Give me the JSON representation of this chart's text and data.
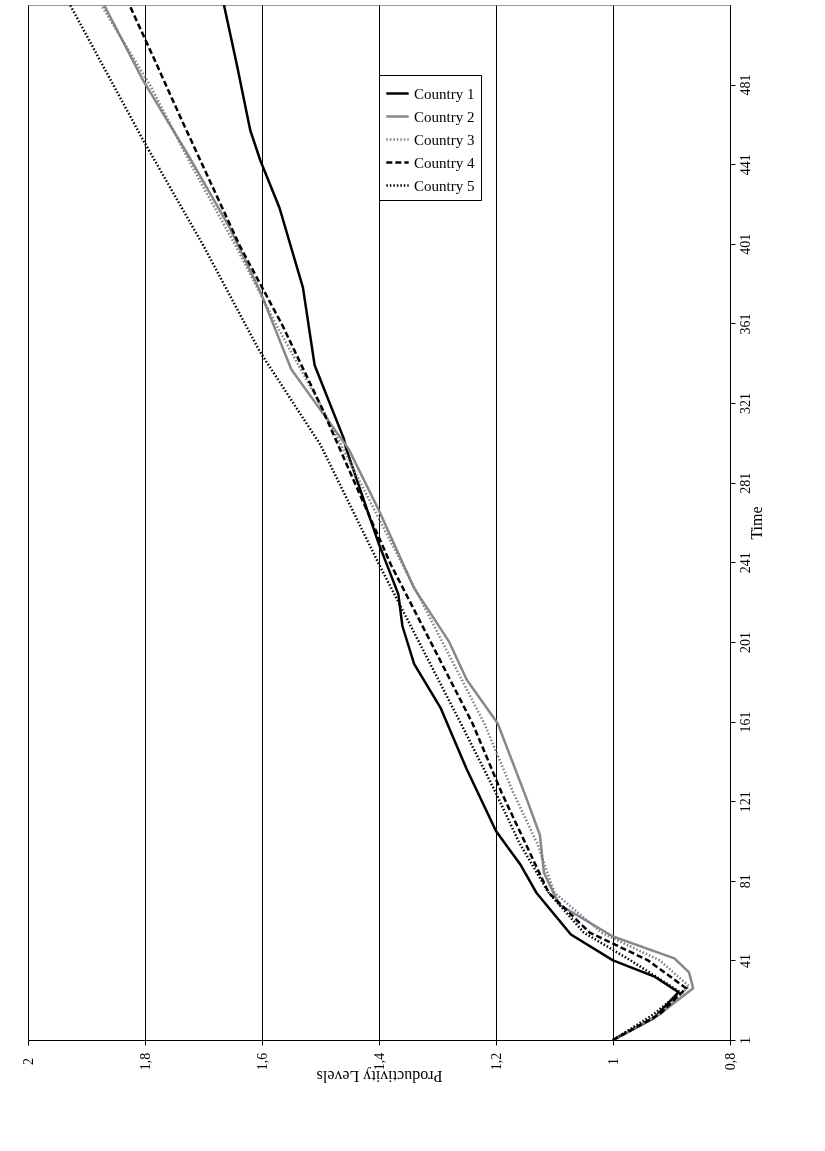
{
  "chart_data": {
    "type": "line",
    "xlabel": "Productivity Levels",
    "ylabel": "Time",
    "xlim": [
      2,
      0.8
    ],
    "xticks": [
      2,
      {
        "value": 1.8,
        "label": "1,8"
      },
      {
        "value": 1.6,
        "label": "1,6"
      },
      {
        "value": 1.4,
        "label": "1,4"
      },
      {
        "value": 1.2,
        "label": "1,2"
      },
      1,
      {
        "value": 0.8,
        "label": "0,8"
      }
    ],
    "ylim": [
      1,
      521
    ],
    "yticks": [
      1,
      41,
      81,
      121,
      161,
      201,
      241,
      281,
      321,
      361,
      401,
      441,
      481
    ],
    "grid": "x",
    "legend": "top right",
    "marker": "none",
    "series": [
      {
        "name": "Country 1",
        "color": "#000000",
        "line_style": "solid",
        "x": [
          1.0,
          0.93,
          0.888,
          0.93,
          1.0,
          1.072,
          1.131,
          1.158,
          1.2,
          1.25,
          1.295,
          1.34,
          1.36,
          1.367,
          1.4,
          1.456,
          1.46,
          1.51,
          1.53,
          1.57,
          1.603,
          1.62,
          1.643,
          1.665
        ],
        "values": [
          1,
          12,
          25,
          33,
          41,
          54,
          75,
          89,
          106,
          137,
          168,
          190,
          209,
          225,
          250,
          298,
          303,
          340,
          379,
          419,
          443,
          458,
          491,
          521
        ]
      },
      {
        "name": "Country 2",
        "color": "#888888",
        "line_style": "solid",
        "x": [
          1.0,
          0.92,
          0.863,
          0.87,
          0.895,
          1.0,
          1.092,
          1.118,
          1.125,
          1.15,
          1.197,
          1.25,
          1.28,
          1.34,
          1.4,
          1.452,
          1.55,
          1.603,
          1.655,
          1.723,
          1.803,
          1.87
        ],
        "values": [
          1,
          14,
          27,
          35,
          42,
          53,
          69,
          85,
          104,
          124,
          160,
          182,
          201,
          228,
          267,
          298,
          338,
          377,
          409,
          444,
          483,
          521
        ]
      },
      {
        "name": "Country 3",
        "color": "#7a7a9a",
        "line_style": "dotted",
        "x": [
          1.0,
          0.92,
          0.87,
          0.92,
          1.02,
          1.1,
          1.13,
          1.17,
          1.22,
          1.29,
          1.36,
          1.43,
          1.5,
          1.575,
          1.645,
          1.72,
          1.79,
          1.875
        ],
        "values": [
          1,
          14,
          28,
          41,
          55,
          75,
          100,
          125,
          160,
          200,
          240,
          280,
          320,
          360,
          400,
          440,
          480,
          521
        ]
      },
      {
        "name": "Country 4",
        "color": "#000000",
        "line_style": "dashed",
        "x": [
          1.0,
          0.92,
          0.875,
          0.94,
          1.04,
          1.11,
          1.15,
          1.19,
          1.24,
          1.31,
          1.38,
          1.44,
          1.5,
          1.565,
          1.638,
          1.74,
          1.786,
          1.825
        ],
        "values": [
          1,
          14,
          27,
          41,
          55,
          75,
          100,
          125,
          160,
          200,
          240,
          280,
          320,
          360,
          400,
          465,
          495,
          520
        ]
      },
      {
        "name": "Country 5",
        "color": "#000000",
        "line_style": "dotted",
        "x": [
          1.0,
          0.93,
          0.885,
          0.97,
          1.05,
          1.11,
          1.16,
          1.2,
          1.26,
          1.33,
          1.4,
          1.45,
          1.5,
          1.604,
          1.7,
          1.803,
          1.928
        ],
        "values": [
          1,
          14,
          25,
          41,
          55,
          75,
          100,
          125,
          160,
          200,
          240,
          270,
          300,
          347,
          400,
          453,
          521
        ]
      }
    ]
  }
}
